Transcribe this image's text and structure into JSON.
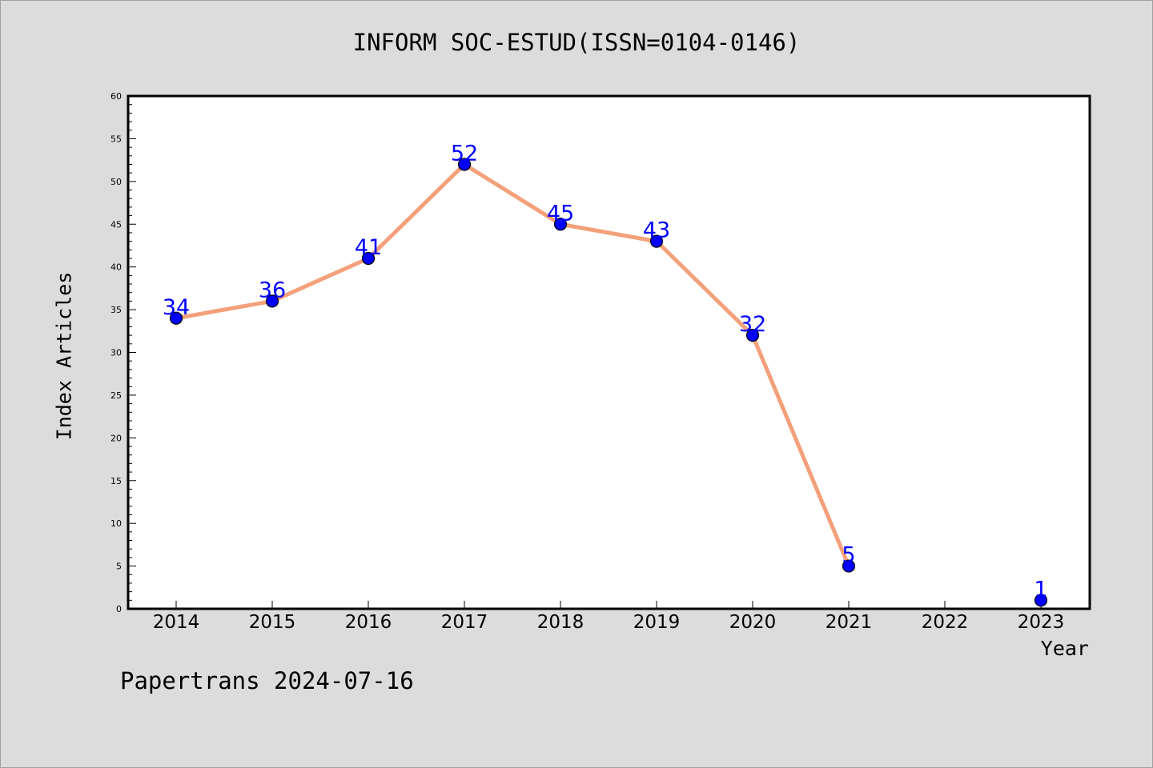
{
  "title": "INFORM SOC-ESTUD(ISSN=0104-0146)",
  "footer": "Papertrans 2024-07-16",
  "chart_data": {
    "type": "line",
    "title": "INFORM SOC-ESTUD(ISSN=0104-0146)",
    "xlabel": "Year",
    "ylabel": "Index Articles",
    "ylim": [
      0,
      60
    ],
    "yticks": [
      0,
      5,
      10,
      15,
      20,
      25,
      30,
      35,
      40,
      45,
      50,
      55,
      60
    ],
    "xticks": [
      "2014",
      "2015",
      "2016",
      "2017",
      "2018",
      "2019",
      "2020",
      "2021",
      "2022",
      "2023"
    ],
    "grid": false,
    "line_color": "#f4a07a",
    "marker_color": "#0000ff",
    "label_color": "#0000ff",
    "series": [
      {
        "segments": [
          {
            "x": [
              "2014",
              "2015",
              "2016",
              "2017",
              "2018",
              "2019",
              "2020",
              "2021"
            ],
            "y": [
              34,
              36,
              41,
              52,
              45,
              43,
              32,
              5
            ]
          },
          {
            "x": [
              "2023"
            ],
            "y": [
              1
            ]
          }
        ],
        "points": [
          {
            "x": "2014",
            "y": 34
          },
          {
            "x": "2015",
            "y": 36
          },
          {
            "x": "2016",
            "y": 41
          },
          {
            "x": "2017",
            "y": 52
          },
          {
            "x": "2018",
            "y": 45
          },
          {
            "x": "2019",
            "y": 43
          },
          {
            "x": "2020",
            "y": 32
          },
          {
            "x": "2021",
            "y": 5
          },
          {
            "x": "2023",
            "y": 1
          }
        ]
      }
    ]
  }
}
